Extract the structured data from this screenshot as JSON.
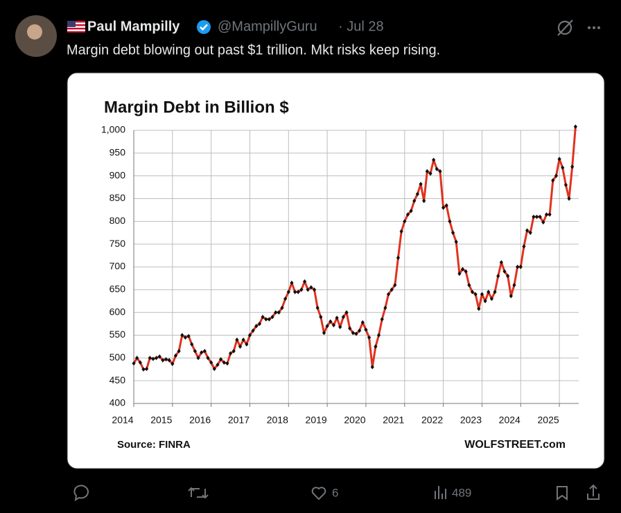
{
  "tweet": {
    "name": "Paul Mampilly",
    "handle": "@MampillyGuru",
    "date": "· Jul 28",
    "text": "Margin debt blowing out past $1 trillion. Mkt risks keep rising.",
    "likes": "6",
    "views": "489"
  },
  "chart_data": {
    "type": "line",
    "title": "Margin Debt in Billion $",
    "source": "Source: FINRA",
    "credit": "WOLFSTREET.com",
    "x": [
      2014,
      2014.083,
      2014.167,
      2014.25,
      2014.333,
      2014.417,
      2014.5,
      2014.583,
      2014.667,
      2014.75,
      2014.833,
      2014.917,
      2015,
      2015.083,
      2015.167,
      2015.25,
      2015.333,
      2015.417,
      2015.5,
      2015.583,
      2015.667,
      2015.75,
      2015.833,
      2015.917,
      2016,
      2016.083,
      2016.167,
      2016.25,
      2016.333,
      2016.417,
      2016.5,
      2016.583,
      2016.667,
      2016.75,
      2016.833,
      2016.917,
      2017,
      2017.083,
      2017.167,
      2017.25,
      2017.333,
      2017.417,
      2017.5,
      2017.583,
      2017.667,
      2017.75,
      2017.833,
      2017.917,
      2018,
      2018.083,
      2018.167,
      2018.25,
      2018.333,
      2018.417,
      2018.5,
      2018.583,
      2018.667,
      2018.75,
      2018.833,
      2018.917,
      2019,
      2019.083,
      2019.167,
      2019.25,
      2019.333,
      2019.417,
      2019.5,
      2019.583,
      2019.667,
      2019.75,
      2019.833,
      2019.917,
      2020,
      2020.083,
      2020.167,
      2020.25,
      2020.333,
      2020.417,
      2020.5,
      2020.583,
      2020.667,
      2020.75,
      2020.833,
      2020.917,
      2021,
      2021.083,
      2021.167,
      2021.25,
      2021.333,
      2021.417,
      2021.5,
      2021.583,
      2021.667,
      2021.75,
      2021.833,
      2021.917,
      2022,
      2022.083,
      2022.167,
      2022.25,
      2022.333,
      2022.417,
      2022.5,
      2022.583,
      2022.667,
      2022.75,
      2022.833,
      2022.917,
      2023,
      2023.083,
      2023.167,
      2023.25,
      2023.333,
      2023.417,
      2023.5,
      2023.583,
      2023.667,
      2023.75,
      2023.833,
      2023.917,
      2024,
      2024.083,
      2024.167,
      2024.25,
      2024.333,
      2024.417,
      2024.5,
      2024.583,
      2024.667,
      2024.75,
      2024.833,
      2024.917,
      2025,
      2025.083,
      2025.167,
      2025.25,
      2025.333,
      2025.417
    ],
    "values": [
      488,
      500,
      490,
      475,
      476,
      500,
      498,
      500,
      503,
      495,
      497,
      495,
      487,
      505,
      515,
      550,
      545,
      548,
      530,
      515,
      500,
      512,
      515,
      500,
      490,
      476,
      485,
      497,
      490,
      488,
      510,
      515,
      540,
      525,
      540,
      530,
      550,
      560,
      570,
      575,
      590,
      585,
      585,
      590,
      600,
      600,
      610,
      630,
      645,
      665,
      645,
      645,
      650,
      668,
      650,
      655,
      650,
      610,
      590,
      555,
      570,
      580,
      572,
      588,
      568,
      590,
      600,
      565,
      555,
      553,
      560,
      578,
      562,
      545,
      480,
      525,
      550,
      585,
      610,
      640,
      650,
      660,
      720,
      778,
      800,
      815,
      823,
      845,
      860,
      882,
      845,
      910,
      905,
      935,
      915,
      910,
      830,
      835,
      800,
      775,
      755,
      685,
      695,
      690,
      660,
      645,
      640,
      608,
      640,
      625,
      645,
      630,
      645,
      680,
      710,
      690,
      680,
      636,
      660,
      700,
      700,
      745,
      780,
      775,
      810,
      810,
      810,
      798,
      815,
      815,
      890,
      900,
      937,
      918,
      880,
      850,
      920,
      1008
    ],
    "color": "#e0321e",
    "marker_color": "#111111",
    "xlim": [
      2014,
      2025.5
    ],
    "xticks": [
      2014,
      2015,
      2016,
      2017,
      2018,
      2019,
      2020,
      2021,
      2022,
      2023,
      2024,
      2025
    ],
    "ylim": [
      400,
      1000
    ],
    "yticks": [
      400,
      450,
      500,
      550,
      600,
      650,
      700,
      750,
      800,
      850,
      900,
      950,
      {
        "value": 1000,
        "label": "1,000"
      }
    ],
    "grid": true
  }
}
